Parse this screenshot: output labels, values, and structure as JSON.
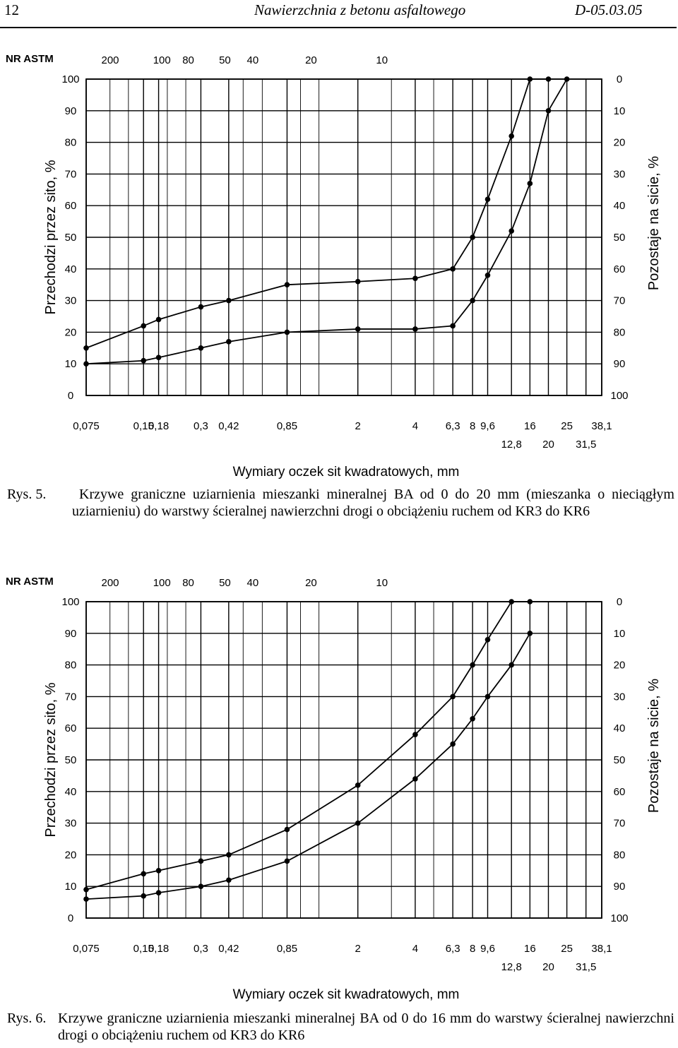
{
  "header": {
    "page_number": "12",
    "title": "Nawierzchnia z betonu asfaltowego",
    "code": "D-05.03.05"
  },
  "figures": [
    {
      "caption_label": "Rys.  5.",
      "caption_text": "Krzywe graniczne uziarnienia mieszanki mineralnej BA od 0 do 20 mm (mieszanka o nieciągłym uziarnieniu) do warstwy ścieralnej nawierzchni drogi o obciążeniu ruchem od KR3 do KR6",
      "chart_data": {
        "type": "line",
        "left_axis_title": "Przechodzi przez sito, %",
        "right_axis_title": "Pozostaje na sicie, %",
        "x_axis_title": "Wymiary oczek sit kwadratowych, mm",
        "astm_label": "NR ASTM",
        "astm_ticks": [
          "200",
          "100",
          "80",
          "50",
          "40",
          "20",
          "10"
        ],
        "astm_at_mm": [
          0.075,
          0.15,
          0.18,
          0.3,
          0.42,
          0.85,
          2
        ],
        "sieve_labels": [
          "0,075",
          "0,15",
          "0,18",
          "0,3",
          "0,42",
          "0,85",
          "2",
          "4",
          "6,3",
          "8",
          "9,6",
          "12,8",
          "16",
          "20",
          "25",
          "31,5",
          "38,1"
        ],
        "sieve_mm": [
          0.075,
          0.15,
          0.18,
          0.3,
          0.42,
          0.85,
          2,
          4,
          6.3,
          8,
          9.6,
          12.8,
          16,
          20,
          25,
          31.5,
          38.1
        ],
        "left_ticks": [
          "100",
          "90",
          "80",
          "70",
          "60",
          "50",
          "40",
          "30",
          "20",
          "10",
          "0"
        ],
        "right_ticks": [
          "0",
          "10",
          "20",
          "30",
          "40",
          "50",
          "60",
          "70",
          "80",
          "90",
          "100"
        ],
        "ylim": [
          0,
          100
        ],
        "series": [
          {
            "x": [
              0.075,
              0.15,
              0.18,
              0.3,
              0.42,
              0.85,
              2,
              4,
              6.3,
              8,
              9.6,
              12.8,
              16,
              20
            ],
            "values": [
              15,
              22,
              24,
              28,
              30,
              35,
              36,
              37,
              40,
              50,
              62,
              82,
              100,
              100
            ]
          },
          {
            "x": [
              0.075,
              0.15,
              0.18,
              0.3,
              0.42,
              0.85,
              2,
              4,
              6.3,
              8,
              9.6,
              12.8,
              16,
              20,
              25
            ],
            "values": [
              10,
              11,
              12,
              15,
              17,
              20,
              21,
              21,
              22,
              30,
              38,
              52,
              67,
              90,
              100
            ]
          }
        ]
      }
    },
    {
      "caption_label": "Rys.  6.",
      "caption_text": "Krzywe graniczne uziarnienia mieszanki mineralnej BA od 0 do 16 mm do warstwy ścieralnej nawierzchni drogi o obciążeniu ruchem od KR3 do KR6",
      "chart_data": {
        "type": "line",
        "left_axis_title": "Przechodzi przez sito, %",
        "right_axis_title": "Pozostaje na sicie, %",
        "x_axis_title": "Wymiary oczek sit kwadratowych, mm",
        "astm_label": "NR ASTM",
        "astm_ticks": [
          "200",
          "100",
          "80",
          "50",
          "40",
          "20",
          "10"
        ],
        "astm_at_mm": [
          0.075,
          0.15,
          0.18,
          0.3,
          0.42,
          0.85,
          2
        ],
        "sieve_labels": [
          "0,075",
          "0,15",
          "0,18",
          "0,3",
          "0,42",
          "0,85",
          "2",
          "4",
          "6,3",
          "8",
          "9,6",
          "12,8",
          "16",
          "20",
          "25",
          "31,5",
          "38,1"
        ],
        "sieve_mm": [
          0.075,
          0.15,
          0.18,
          0.3,
          0.42,
          0.85,
          2,
          4,
          6.3,
          8,
          9.6,
          12.8,
          16,
          20,
          25,
          31.5,
          38.1
        ],
        "left_ticks": [
          "100",
          "90",
          "80",
          "70",
          "60",
          "50",
          "40",
          "30",
          "20",
          "10",
          "0"
        ],
        "right_ticks": [
          "0",
          "10",
          "20",
          "30",
          "40",
          "50",
          "60",
          "70",
          "80",
          "90",
          "100"
        ],
        "ylim": [
          0,
          100
        ],
        "series": [
          {
            "x": [
              0.075,
              0.15,
              0.18,
              0.3,
              0.42,
              0.85,
              2,
              4,
              6.3,
              8,
              9.6,
              12.8,
              16
            ],
            "values": [
              9,
              14,
              15,
              18,
              20,
              28,
              42,
              58,
              70,
              80,
              88,
              100,
              100
            ]
          },
          {
            "x": [
              0.075,
              0.15,
              0.18,
              0.3,
              0.42,
              0.85,
              2,
              4,
              6.3,
              8,
              9.6,
              12.8,
              16
            ],
            "values": [
              6,
              7,
              8,
              10,
              12,
              18,
              30,
              44,
              55,
              63,
              70,
              80,
              90
            ]
          }
        ]
      }
    }
  ]
}
